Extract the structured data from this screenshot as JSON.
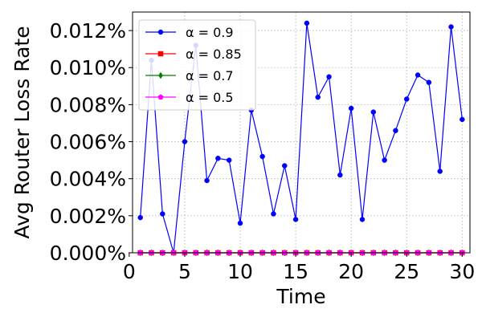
{
  "chart_data": {
    "type": "line",
    "xlabel": "Time",
    "ylabel": "Avg Router Loss Rate",
    "xlim": [
      0.3,
      30.7
    ],
    "ylim": [
      0.0,
      0.013
    ],
    "xticks": [
      0,
      5,
      10,
      15,
      20,
      25,
      30
    ],
    "xtick_labels": [
      "0",
      "5",
      "10",
      "15",
      "20",
      "25",
      "30"
    ],
    "yticks": [
      0.0,
      0.002,
      0.004,
      0.006,
      0.008,
      0.01,
      0.012
    ],
    "ytick_labels": [
      "0.000%",
      "0.002%",
      "0.004%",
      "0.006%",
      "0.008%",
      "0.010%",
      "0.012%"
    ],
    "grid": true,
    "legend_position": "upper-left",
    "x": [
      1,
      2,
      3,
      4,
      5,
      6,
      7,
      8,
      9,
      10,
      11,
      12,
      13,
      14,
      15,
      16,
      17,
      18,
      19,
      20,
      21,
      22,
      23,
      24,
      25,
      26,
      27,
      28,
      29,
      30
    ],
    "series": [
      {
        "name": "α = 0.9",
        "color": "#0000ff",
        "marker": "circle",
        "values": [
          0.0019,
          0.0104,
          0.0021,
          0.0,
          0.006,
          0.0112,
          0.0039,
          0.0051,
          0.005,
          0.0016,
          0.0077,
          0.0052,
          0.0021,
          0.0047,
          0.0018,
          0.0124,
          0.0084,
          0.0095,
          0.0042,
          0.0078,
          0.0018,
          0.0076,
          0.005,
          0.0066,
          0.0083,
          0.0096,
          0.0092,
          0.0044,
          0.0122,
          0.0072
        ]
      },
      {
        "name": "α = 0.85",
        "color": "#ff0000",
        "marker": "square",
        "values": [
          0,
          0,
          0,
          0,
          0,
          0,
          0,
          0,
          0,
          0,
          0,
          0,
          0,
          0,
          0,
          0,
          0,
          0,
          0,
          0,
          0,
          0,
          0,
          0,
          0,
          0,
          0,
          0,
          0,
          0
        ]
      },
      {
        "name": "α = 0.7",
        "color": "#008000",
        "marker": "diamond",
        "values": [
          0,
          0,
          0,
          0,
          0,
          0,
          0,
          0,
          0,
          0,
          0,
          0,
          0,
          0,
          0,
          0,
          0,
          0,
          0,
          0,
          0,
          0,
          0,
          0,
          0,
          0,
          0,
          0,
          0,
          0
        ]
      },
      {
        "name": "α = 0.5",
        "color": "#ff00ff",
        "marker": "pentagon",
        "values": [
          0,
          0,
          0,
          0,
          0,
          0,
          0,
          0,
          0,
          0,
          0,
          0,
          0,
          0,
          0,
          0,
          0,
          0,
          0,
          0,
          0,
          0,
          0,
          0,
          0,
          0,
          0,
          0,
          0,
          0
        ]
      }
    ]
  }
}
